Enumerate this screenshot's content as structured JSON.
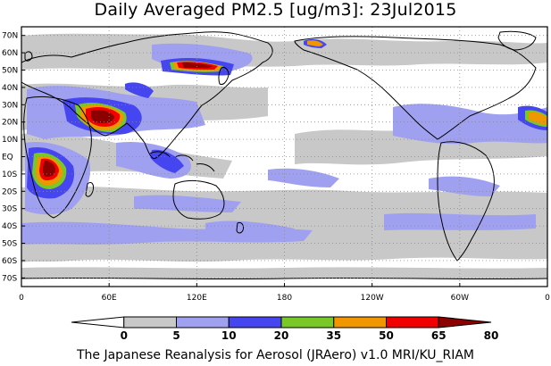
{
  "title": "Daily Averaged PM2.5 [ug/m3]: 23Jul2015",
  "footer": "The Japanese Reanalysis for Aerosol (JRAero) v1.0 MRI/KU_RIAM",
  "map": {
    "lat_labels": [
      "70N",
      "60N",
      "50N",
      "40N",
      "30N",
      "20N",
      "10N",
      "EQ",
      "10S",
      "20S",
      "30S",
      "40S",
      "50S",
      "60S",
      "70S"
    ],
    "lon_labels": [
      "0",
      "60E",
      "120E",
      "180",
      "120W",
      "60W",
      "0"
    ]
  },
  "colorbar": {
    "levels": [
      "0",
      "5",
      "10",
      "20",
      "35",
      "50",
      "65",
      "80"
    ],
    "colors": [
      "#ffffff",
      "#c8c8c8",
      "#a0a0f0",
      "#4646f0",
      "#78c828",
      "#f09600",
      "#f00000",
      "#8c0000"
    ]
  },
  "colors": {
    "grey": "#c8c8c8",
    "light_blue": "#a0a0f0",
    "blue": "#4646f0",
    "green": "#78c828",
    "orange": "#f09600",
    "red": "#f00000",
    "dark_red": "#8c0000"
  }
}
